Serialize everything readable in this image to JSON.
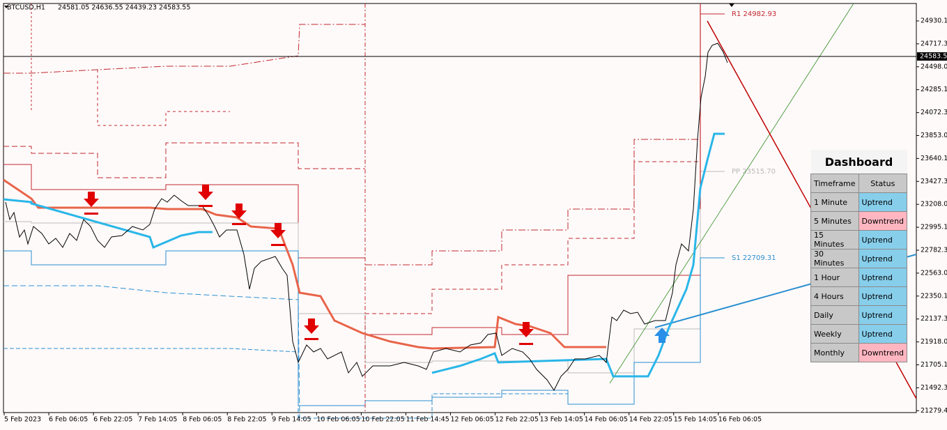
{
  "header": {
    "symbol": "BTCUSD,H1",
    "ohlc": "24581.05 24636.55 24439.23 24583.55"
  },
  "price_axis": [
    "24930.15",
    "24717.30",
    "24498.00",
    "24285.15",
    "24072.30",
    "23853.00",
    "23640.15",
    "23427.30",
    "23208.00",
    "22995.15",
    "22782.30",
    "22563.00",
    "22350.15",
    "22137.30",
    "21918.00",
    "21705.15",
    "21492.30",
    "21279.45"
  ],
  "current_price": "24583.55",
  "time_axis": [
    "5 Feb 2023",
    "6 Feb 06:05",
    "6 Feb 22:05",
    "7 Feb 14:05",
    "8 Feb 06:05",
    "8 Feb 22:05",
    "9 Feb 14:05",
    "10 Feb 06:05",
    "10 Feb 22:05",
    "11 Feb 14:45",
    "12 Feb 06:05",
    "12 Feb 22:05",
    "13 Feb 14:05",
    "14 Feb 06:05",
    "14 Feb 22:05",
    "15 Feb 14:05",
    "16 Feb 06:05"
  ],
  "levels": [
    {
      "label": "R1 24982.93",
      "color": "#c0282d"
    },
    {
      "label": "PP 23515.70",
      "color": "#b8b8b8"
    },
    {
      "label": "S1 22709.31",
      "color": "#2a8fd0"
    }
  ],
  "dashboard": {
    "title": "Dashboard",
    "columns": [
      "Timeframe",
      "Status"
    ],
    "rows": [
      {
        "timeframe": "1 Minute",
        "status": "Uptrend",
        "color": "#87ceeb"
      },
      {
        "timeframe": "5 Minutes",
        "status": "Downtrend",
        "color": "#ffb6c1"
      },
      {
        "timeframe": "15 Minutes",
        "status": "Uptrend",
        "color": "#87ceeb"
      },
      {
        "timeframe": "30 Minutes",
        "status": "Uptrend",
        "color": "#87ceeb"
      },
      {
        "timeframe": "1 Hour",
        "status": "Uptrend",
        "color": "#87ceeb"
      },
      {
        "timeframe": "4 Hours",
        "status": "Uptrend",
        "color": "#87ceeb"
      },
      {
        "timeframe": "Daily",
        "status": "Uptrend",
        "color": "#87ceeb"
      },
      {
        "timeframe": "Weekly",
        "status": "Uptrend",
        "color": "#87ceeb"
      },
      {
        "timeframe": "Monthly",
        "status": "Downtrend",
        "color": "#ffb6c1"
      }
    ]
  }
}
